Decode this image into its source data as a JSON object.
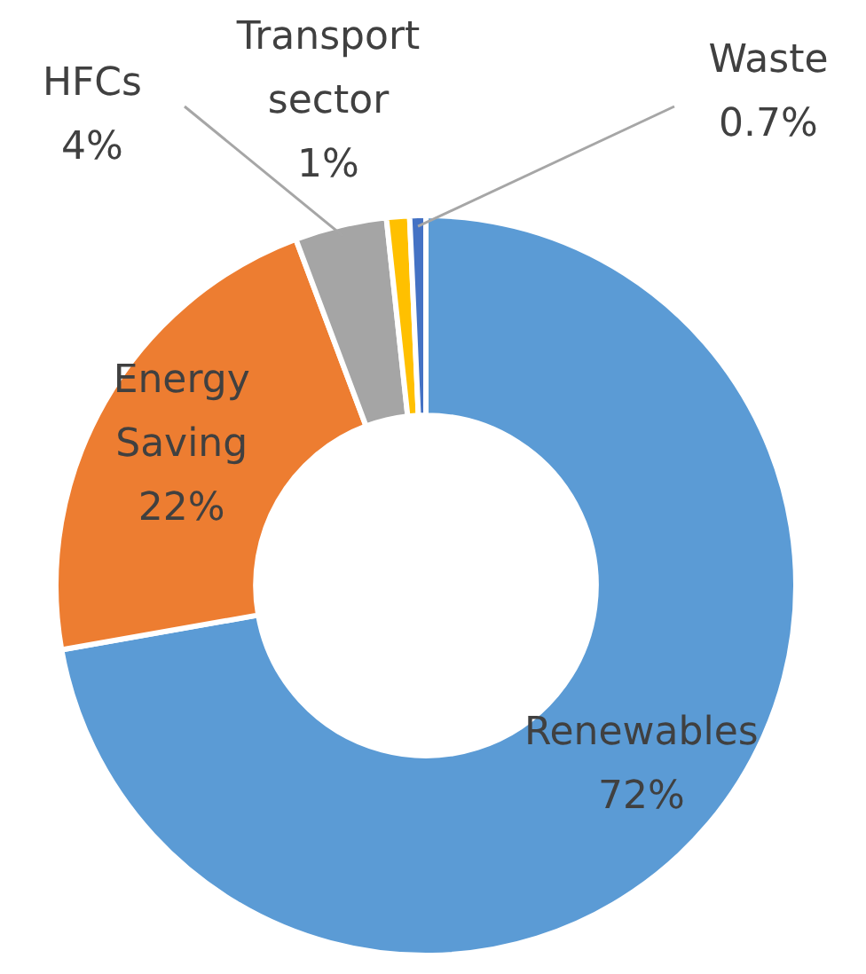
{
  "chart_data": {
    "type": "donut",
    "categories": [
      "Renewables",
      "Energy Saving",
      "HFCs",
      "Transport sector",
      "Waste"
    ],
    "values": [
      72,
      22,
      4,
      1,
      0.7
    ],
    "value_labels": [
      "72%",
      "22%",
      "4%",
      "1%",
      "0.7%"
    ],
    "colors": [
      "#5b9bd5",
      "#ed7d31",
      "#a5a5a5",
      "#ffc000",
      "#4472c4"
    ],
    "legend": false
  }
}
